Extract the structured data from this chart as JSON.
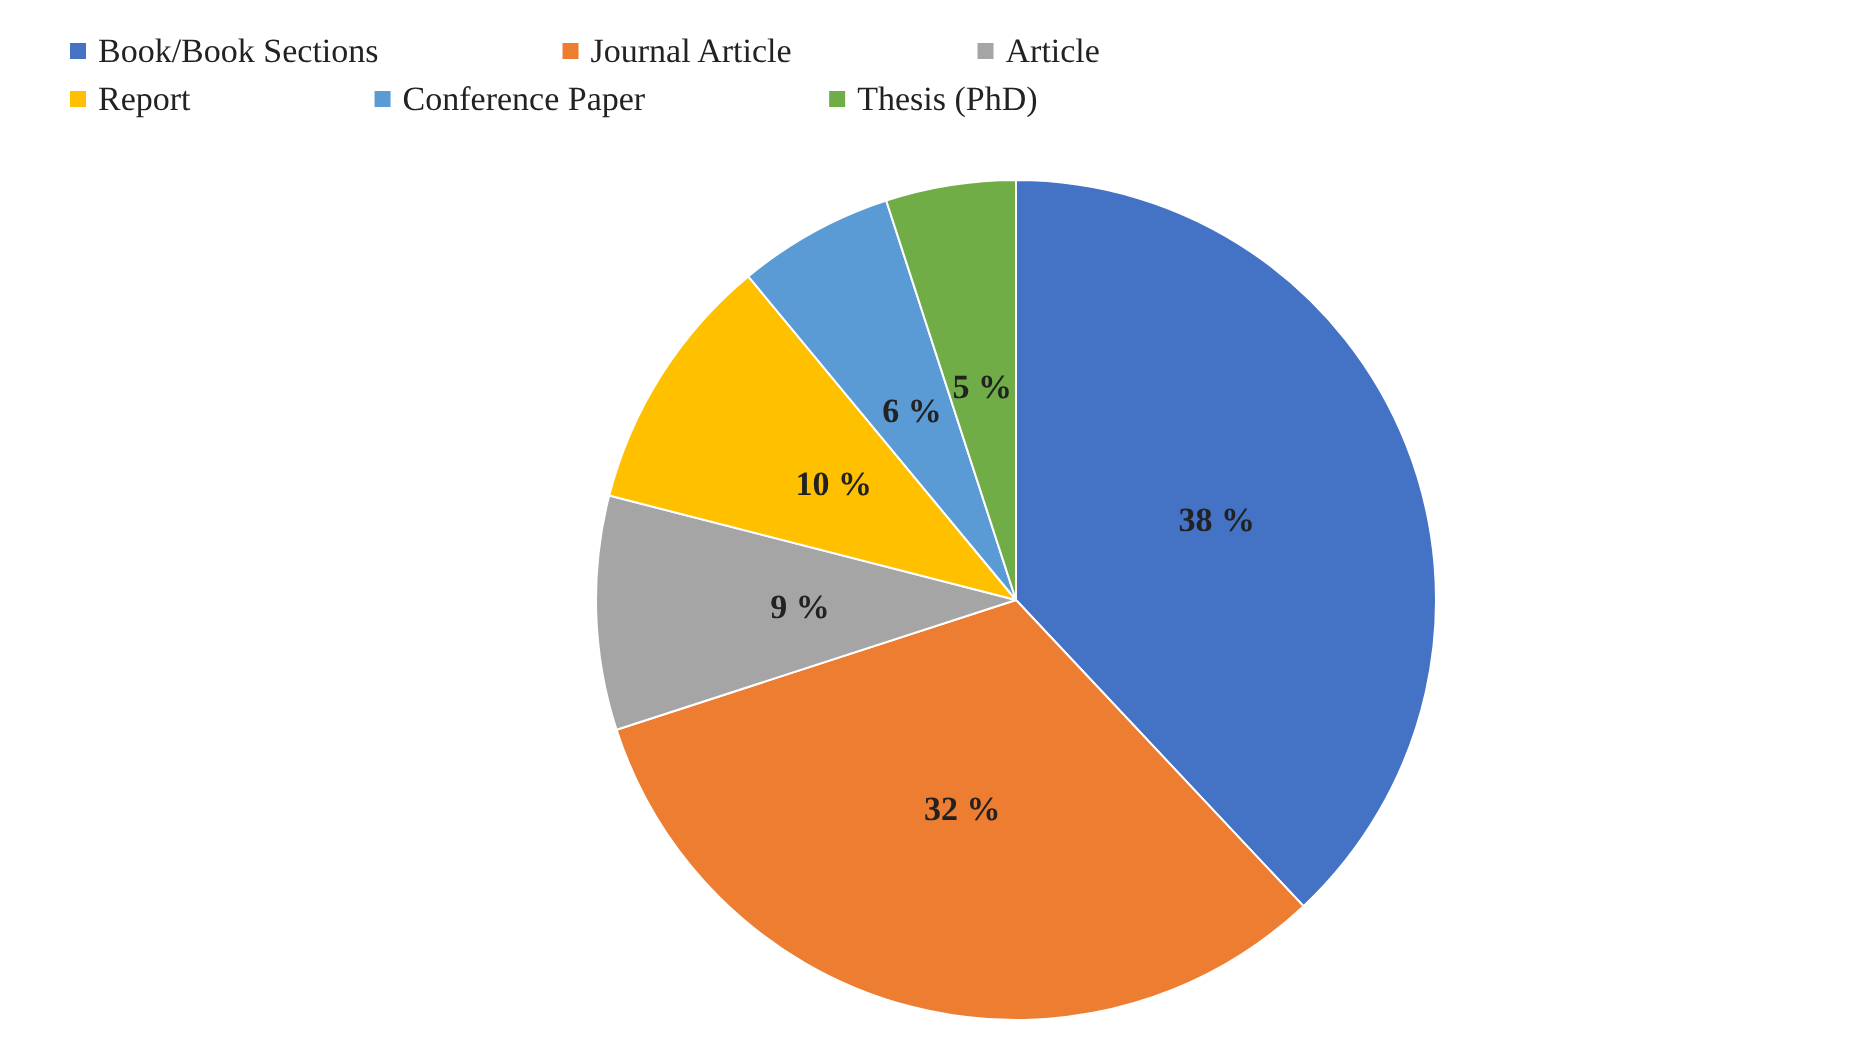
{
  "chart_data": {
    "type": "pie",
    "categories": [
      "Book/Book Sections",
      "Journal Article",
      "Article",
      "Report",
      "Conference Paper",
      "Thesis (PhD)"
    ],
    "values": [
      38,
      32,
      9,
      10,
      6,
      5
    ],
    "colors": [
      "#4472c4",
      "#ed7d31",
      "#a5a5a5",
      "#ffc000",
      "#5b9bd5",
      "#70ad47"
    ],
    "value_labels": [
      "38 %",
      "32 %",
      "9 %",
      "10 %",
      "6 %",
      "5 %"
    ],
    "legend": "top"
  }
}
